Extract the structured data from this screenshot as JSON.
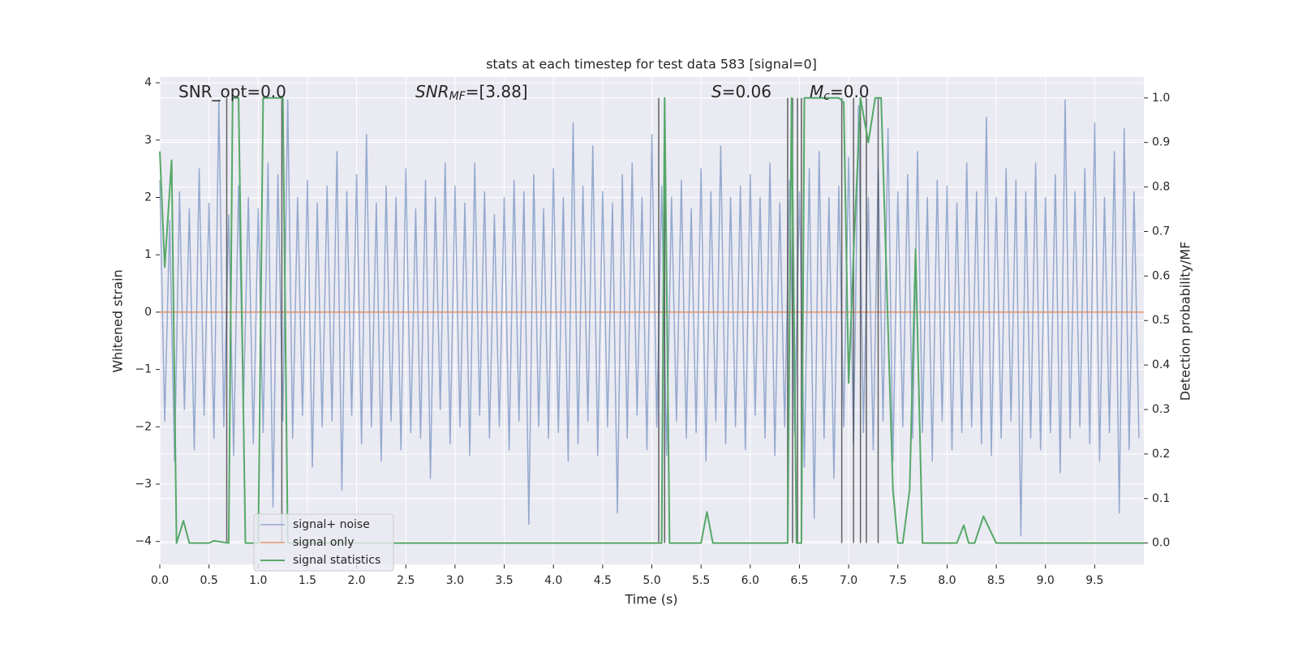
{
  "chart_data": {
    "type": "line",
    "title": "stats at each timestep for test data 583 [signal=0]",
    "xlabel": "Time (s)",
    "ylabel": "Whitened strain",
    "y2label": "Detection probability/MF",
    "annotations": [
      {
        "text": "SNR_opt=0.0"
      },
      {
        "text": "SNR",
        "sub": "MF",
        "rest": "=[3.88]",
        "italic": true
      },
      {
        "text": "S",
        "rest": "=0.06",
        "italic": true
      },
      {
        "text": "M",
        "sub": "c",
        "rest": "=0.0",
        "italic": true
      }
    ],
    "xlim": [
      0,
      10
    ],
    "ylim": [
      -4.4,
      4.1
    ],
    "y2lim": [
      -0.048,
      1.047
    ],
    "xticks": [
      {
        "value": 0,
        "label": "0.0"
      },
      {
        "value": 0.5,
        "label": "0.5"
      },
      {
        "value": 1,
        "label": "1.0"
      },
      {
        "value": 1.5,
        "label": "1.5"
      },
      {
        "value": 2,
        "label": "2.0"
      },
      {
        "value": 2.5,
        "label": "2.5"
      },
      {
        "value": 3,
        "label": "3.0"
      },
      {
        "value": 3.5,
        "label": "3.5"
      },
      {
        "value": 4,
        "label": "4.0"
      },
      {
        "value": 4.5,
        "label": "4.5"
      },
      {
        "value": 5,
        "label": "5.0"
      },
      {
        "value": 5.5,
        "label": "5.5"
      },
      {
        "value": 6,
        "label": "6.0"
      },
      {
        "value": 6.5,
        "label": "6.5"
      },
      {
        "value": 7,
        "label": "7.0"
      },
      {
        "value": 7.5,
        "label": "7.5"
      },
      {
        "value": 8,
        "label": "8.0"
      },
      {
        "value": 8.5,
        "label": "8.5"
      },
      {
        "value": 9,
        "label": "9.0"
      },
      {
        "value": 9.5,
        "label": "9.5"
      }
    ],
    "yticks": [
      {
        "value": -4,
        "label": "−4"
      },
      {
        "value": -3,
        "label": "−3"
      },
      {
        "value": -2,
        "label": "−2"
      },
      {
        "value": -1,
        "label": "−1"
      },
      0,
      1,
      2,
      3,
      4
    ],
    "y2ticks": [
      {
        "value": 0,
        "label": "0.0"
      },
      {
        "value": 0.1,
        "label": "0.1"
      },
      {
        "value": 0.2,
        "label": "0.2"
      },
      {
        "value": 0.3,
        "label": "0.3"
      },
      {
        "value": 0.4,
        "label": "0.4"
      },
      {
        "value": 0.5,
        "label": "0.5"
      },
      {
        "value": 0.6,
        "label": "0.6"
      },
      {
        "value": 0.7,
        "label": "0.7"
      },
      {
        "value": 0.8,
        "label": "0.8"
      },
      {
        "value": 0.9,
        "label": "0.9"
      },
      {
        "value": 1,
        "label": "1.0"
      }
    ],
    "grid": true,
    "legend": "best",
    "series": [
      {
        "name": "signal+ noise",
        "color": "#4c72b0",
        "x": [
          0,
          0.05,
          0.1,
          0.15,
          0.2,
          0.25,
          0.3,
          0.35,
          0.4,
          0.45,
          0.5,
          0.55,
          0.6,
          0.65,
          0.7,
          0.75,
          0.8,
          0.85,
          0.9,
          0.95,
          1,
          1.05,
          1.1,
          1.15,
          1.2,
          1.25,
          1.3,
          1.35,
          1.4,
          1.45,
          1.5,
          1.55,
          1.6,
          1.65,
          1.7,
          1.75,
          1.8,
          1.85,
          1.9,
          1.95,
          2,
          2.05,
          2.1,
          2.15,
          2.2,
          2.25,
          2.3,
          2.35,
          2.4,
          2.45,
          2.5,
          2.55,
          2.6,
          2.65,
          2.7,
          2.75,
          2.8,
          2.85,
          2.9,
          2.95,
          3,
          3.05,
          3.1,
          3.15,
          3.2,
          3.25,
          3.3,
          3.35,
          3.4,
          3.45,
          3.5,
          3.55,
          3.6,
          3.65,
          3.7,
          3.75,
          3.8,
          3.85,
          3.9,
          3.95,
          4,
          4.05,
          4.1,
          4.15,
          4.2,
          4.25,
          4.3,
          4.35,
          4.4,
          4.45,
          4.5,
          4.55,
          4.6,
          4.65,
          4.7,
          4.75,
          4.8,
          4.85,
          4.9,
          4.95,
          5,
          5.05,
          5.1,
          5.15,
          5.2,
          5.25,
          5.3,
          5.35,
          5.4,
          5.45,
          5.5,
          5.55,
          5.6,
          5.65,
          5.7,
          5.75,
          5.8,
          5.85,
          5.9,
          5.95,
          6,
          6.05,
          6.1,
          6.15,
          6.2,
          6.25,
          6.3,
          6.35,
          6.4,
          6.45,
          6.5,
          6.55,
          6.6,
          6.65,
          6.7,
          6.75,
          6.8,
          6.85,
          6.9,
          6.95,
          7,
          7.05,
          7.1,
          7.15,
          7.2,
          7.25,
          7.3,
          7.35,
          7.4,
          7.45,
          7.5,
          7.55,
          7.6,
          7.65,
          7.7,
          7.75,
          7.8,
          7.85,
          7.9,
          7.95,
          8,
          8.05,
          8.1,
          8.15,
          8.2,
          8.25,
          8.3,
          8.35,
          8.4,
          8.45,
          8.5,
          8.55,
          8.6,
          8.65,
          8.7,
          8.75,
          8.8,
          8.85,
          8.9,
          8.95,
          9,
          9.05,
          9.1,
          9.15,
          9.2,
          9.25,
          9.3,
          9.35,
          9.4,
          9.45,
          9.5,
          9.55,
          9.6,
          9.65,
          9.7,
          9.75,
          9.8,
          9.85,
          9.9,
          9.95
        ],
        "values": [
          2.3,
          -1.9,
          1.6,
          -2.6,
          2.1,
          -1.7,
          1.8,
          -2.4,
          2.5,
          -1.8,
          1.9,
          -2.2,
          3.7,
          -2.0,
          1.7,
          -2.5,
          2.2,
          -1.6,
          2.0,
          -2.3,
          1.8,
          -2.1,
          2.6,
          -3.4,
          2.4,
          -1.9,
          3.7,
          -2.2,
          2.0,
          -1.8,
          2.3,
          -2.7,
          1.9,
          -2.0,
          2.2,
          -1.9,
          2.8,
          -3.1,
          2.1,
          -1.8,
          2.4,
          -2.3,
          3.1,
          -2.0,
          1.9,
          -2.6,
          2.2,
          -1.9,
          2.0,
          -2.4,
          2.5,
          -2.1,
          1.8,
          -2.2,
          2.3,
          -2.9,
          2.0,
          -1.7,
          2.6,
          -2.3,
          2.2,
          -2.0,
          1.9,
          -2.5,
          2.6,
          -1.8,
          2.1,
          -2.2,
          1.7,
          -2.0,
          2.0,
          -2.4,
          2.3,
          -1.9,
          2.1,
          -3.7,
          2.4,
          -2.0,
          1.8,
          -2.2,
          2.5,
          -2.1,
          2.0,
          -2.6,
          3.3,
          -2.3,
          2.2,
          -1.9,
          2.9,
          -2.5,
          2.1,
          -2.0,
          1.9,
          -3.5,
          2.4,
          -2.2,
          2.6,
          -1.8,
          2.0,
          -2.4,
          3.1,
          -2.0,
          2.2,
          -2.5,
          2.0,
          -1.9,
          2.3,
          -2.2,
          1.8,
          -2.1,
          2.5,
          -2.6,
          2.1,
          -1.9,
          2.9,
          -2.3,
          2.0,
          -2.0,
          2.2,
          -2.4,
          2.4,
          -1.8,
          2.0,
          -2.2,
          2.6,
          -2.5,
          1.9,
          -2.0,
          2.3,
          -2.1,
          2.1,
          -2.7,
          2.5,
          -3.6,
          2.8,
          -2.2,
          2.0,
          -2.9,
          2.2,
          -2.0,
          2.7,
          -2.3,
          3.6,
          -2.1,
          2.0,
          -2.4,
          2.5,
          -1.9,
          3.2,
          -2.6,
          2.1,
          -2.0,
          2.4,
          -2.2,
          2.8,
          -2.1,
          2.0,
          -2.6,
          2.3,
          -1.9,
          2.2,
          -2.4,
          1.9,
          -2.1,
          2.6,
          -2.0,
          2.1,
          -2.3,
          3.4,
          -2.5,
          2.0,
          -2.2,
          2.5,
          -1.9,
          2.3,
          -3.9,
          2.1,
          -2.2,
          2.6,
          -2.4,
          2.0,
          -2.1,
          2.4,
          -2.8,
          3.7,
          -2.2,
          2.1,
          -2.0,
          2.5,
          -2.3,
          3.3,
          -2.6,
          2.0,
          -2.1,
          2.8,
          -3.5,
          3.2,
          -2.4,
          2.1,
          -2.2
        ]
      },
      {
        "name": "signal only",
        "color": "#dd8452",
        "x": [
          0,
          10
        ],
        "values": [
          0,
          0
        ]
      },
      {
        "name": "signal statistics",
        "color": "#55a868",
        "axis": "y2",
        "x": [
          0,
          0.05,
          0.12,
          0.17,
          0.24,
          0.3,
          0.5,
          0.55,
          0.7,
          0.74,
          0.8,
          0.87,
          1,
          1.05,
          1.25,
          1.3,
          2,
          5.1,
          5.13,
          5.18,
          5.5,
          5.56,
          5.62,
          6.38,
          6.42,
          6.47,
          6.52,
          6.55,
          6.9,
          6.95,
          7,
          7.05,
          7.12,
          7.2,
          7.27,
          7.33,
          7.45,
          7.5,
          7.55,
          7.62,
          7.68,
          7.75,
          8.1,
          8.17,
          8.22,
          8.28,
          8.37,
          8.5,
          10
        ],
        "values": [
          0.88,
          0.62,
          0.86,
          0,
          0.05,
          0,
          0,
          0.005,
          0,
          1,
          1,
          0,
          0,
          1,
          1,
          0,
          0,
          0,
          1,
          0,
          0,
          0.07,
          0,
          0,
          1,
          0,
          0,
          1,
          1,
          0.99,
          0.36,
          0.65,
          1,
          0.9,
          1,
          1,
          0.12,
          0,
          0,
          0.12,
          0.66,
          0,
          0,
          0.04,
          0,
          0,
          0.06,
          0,
          0
        ]
      }
    ],
    "vlines": {
      "x": [
        0.68,
        1.24,
        5.07,
        5.13,
        6.38,
        6.43,
        6.48,
        6.52,
        6.93,
        7.05,
        7.12,
        7.18,
        7.3
      ],
      "ymin": 0,
      "ymax": 1,
      "axis": "y2",
      "color": "#333333"
    }
  }
}
